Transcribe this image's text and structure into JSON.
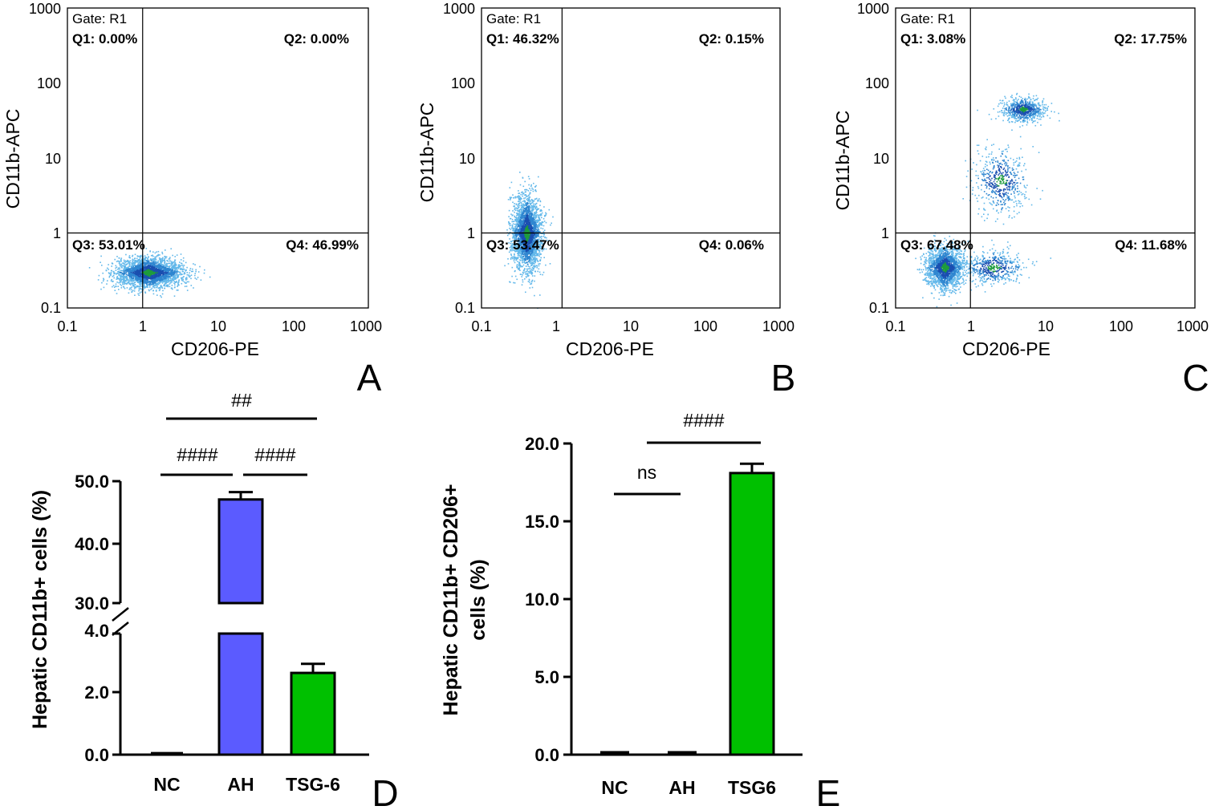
{
  "chart_data": [
    {
      "id": "A",
      "type": "scatter",
      "panel_label": "A",
      "gate": "Gate: R1",
      "xlabel": "CD206-PE",
      "ylabel": "CD11b-APC",
      "x_scale": "log",
      "y_scale": "log",
      "xlim": [
        0.1,
        1000
      ],
      "ylim": [
        0.1,
        1000
      ],
      "x_ticks": [
        "0.1",
        "1",
        "10",
        "100",
        "1000"
      ],
      "y_ticks": [
        "0.1",
        "1",
        "10",
        "100",
        "1000"
      ],
      "quadrant_divider": {
        "x": 1,
        "y": 1
      },
      "quadrants": {
        "Q1": "Q1: 0.00%",
        "Q2": "Q2: 0.00%",
        "Q3": "Q3: 53.01%",
        "Q4": "Q4: 46.99%"
      },
      "populations": [
        {
          "cx": 1.2,
          "cy": 0.3,
          "sx": 2.6,
          "sy": 1.5,
          "n": 2600
        }
      ]
    },
    {
      "id": "B",
      "type": "scatter",
      "panel_label": "B",
      "gate": "Gate: R1",
      "xlabel": "CD206-PE",
      "ylabel": "CD11b-APC",
      "x_scale": "log",
      "y_scale": "log",
      "xlim": [
        0.1,
        1000
      ],
      "ylim": [
        0.1,
        1000
      ],
      "x_ticks": [
        "0.1",
        "1",
        "10",
        "100",
        "1000"
      ],
      "y_ticks": [
        "0.1",
        "1",
        "10",
        "100",
        "1000"
      ],
      "quadrant_divider": {
        "x": 1.2,
        "y": 1
      },
      "quadrants": {
        "Q1": "Q1: 46.32%",
        "Q2": "Q2: 0.15%",
        "Q3": "Q3: 53.47%",
        "Q4": "Q4: 0.06%"
      },
      "populations": [
        {
          "cx": 0.4,
          "cy": 1.0,
          "sx": 1.5,
          "sy": 2.8,
          "n": 2600
        }
      ]
    },
    {
      "id": "C",
      "type": "scatter",
      "panel_label": "C",
      "gate": "Gate: R1",
      "xlabel": "CD206-PE",
      "ylabel": "CD11b-APC",
      "x_scale": "log",
      "y_scale": "log",
      "xlim": [
        0.1,
        1000
      ],
      "ylim": [
        0.1,
        1000
      ],
      "x_ticks": [
        "0.1",
        "1",
        "10",
        "100",
        "1000"
      ],
      "y_ticks": [
        "0.1",
        "1",
        "10",
        "100",
        "1000"
      ],
      "quadrant_divider": {
        "x": 1,
        "y": 1
      },
      "quadrants": {
        "Q1": "Q1: 3.08%",
        "Q2": "Q2: 17.75%",
        "Q3": "Q3: 67.48%",
        "Q4": "Q4: 11.68%"
      },
      "populations": [
        {
          "cx": 0.45,
          "cy": 0.35,
          "sx": 1.7,
          "sy": 1.8,
          "n": 1800
        },
        {
          "cx": 5.0,
          "cy": 45,
          "sx": 1.9,
          "sy": 1.4,
          "n": 650
        },
        {
          "cx": 2.0,
          "cy": 0.35,
          "sx": 2.4,
          "sy": 1.6,
          "n": 500
        },
        {
          "cx": 2.5,
          "cy": 5.0,
          "sx": 2.2,
          "sy": 2.5,
          "n": 500
        }
      ]
    },
    {
      "id": "D",
      "type": "bar",
      "panel_label": "D",
      "ylabel": "Hepatic CD11b+ cells (%)",
      "categories": [
        "NC",
        "AH",
        "TSG-6"
      ],
      "values": [
        0.05,
        47.0,
        2.7
      ],
      "errors": [
        0.0,
        1.2,
        0.3
      ],
      "colors": [
        "#ffffff",
        "#5b5bff",
        "#00c000"
      ],
      "axis_break": {
        "lower": [
          0,
          4.0
        ],
        "upper": [
          30.0,
          50.0
        ]
      },
      "y_ticks_lower": [
        "0.0",
        "2.0",
        "4.0"
      ],
      "y_ticks_upper": [
        "30.0",
        "40.0",
        "50.0"
      ],
      "significance": [
        {
          "from": "NC",
          "to": "TSG-6",
          "label": "##"
        },
        {
          "from": "NC",
          "to": "AH",
          "label": "####"
        },
        {
          "from": "AH",
          "to": "TSG-6",
          "label": "####"
        }
      ]
    },
    {
      "id": "E",
      "type": "bar",
      "panel_label": "E",
      "ylabel": [
        "Hepatic CD11b+ CD206+",
        "cells (%)"
      ],
      "categories": [
        "NC",
        "AH",
        "TSG6"
      ],
      "values": [
        0.1,
        0.1,
        18.1
      ],
      "errors": [
        0.0,
        0.0,
        0.6
      ],
      "colors": [
        "#ffffff",
        "#ffffff",
        "#00c000"
      ],
      "ylim": [
        0,
        20.0
      ],
      "y_ticks": [
        "0.0",
        "5.0",
        "10.0",
        "15.0",
        "20.0"
      ],
      "significance": [
        {
          "from": "NC",
          "to": "AH",
          "label": "ns"
        },
        {
          "from": "AH",
          "to": "TSG6",
          "label": "####"
        }
      ]
    }
  ]
}
